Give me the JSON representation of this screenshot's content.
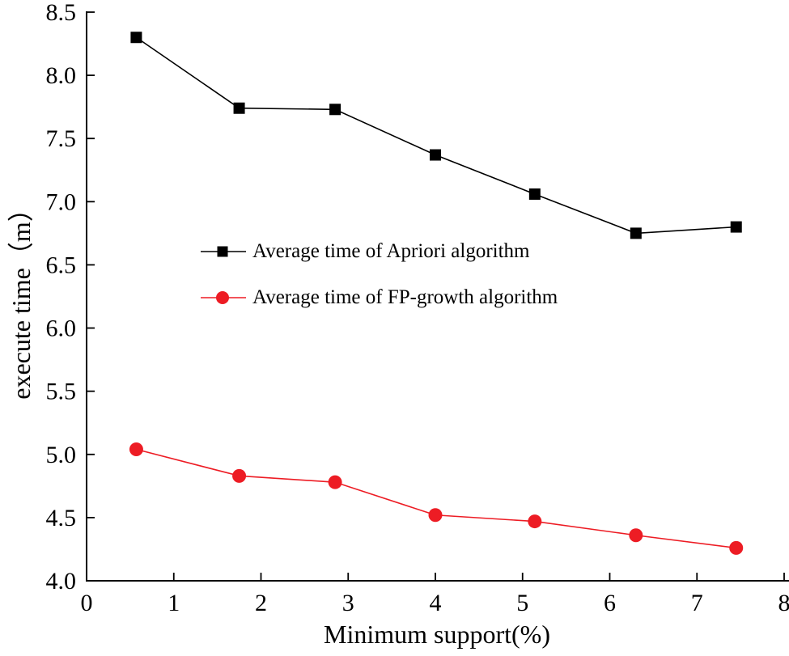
{
  "chart_data": {
    "type": "line",
    "title": "",
    "xlabel": "Minimum support(%)",
    "ylabel": "execute time（m）",
    "xlim": [
      0,
      8
    ],
    "ylim": [
      4.0,
      8.5
    ],
    "xticks": [
      0,
      1,
      2,
      3,
      4,
      5,
      6,
      7,
      8
    ],
    "yticks": [
      4.0,
      4.5,
      5.0,
      5.5,
      6.0,
      6.5,
      7.0,
      7.5,
      8.0,
      8.5
    ],
    "grid": false,
    "legend_position": "inside-left-center",
    "x": [
      0.57,
      1.75,
      2.85,
      4.0,
      5.14,
      6.3,
      7.45
    ],
    "series": [
      {
        "name": "Average time of Apriori algorithm",
        "marker": "square",
        "color": "#000000",
        "values": [
          8.3,
          7.74,
          7.73,
          7.37,
          7.06,
          6.75,
          6.8
        ]
      },
      {
        "name": "Average time of FP-growth algorithm",
        "marker": "circle",
        "color": "#ed1c24",
        "values": [
          5.04,
          4.83,
          4.78,
          4.52,
          4.47,
          4.36,
          4.26
        ]
      }
    ]
  }
}
